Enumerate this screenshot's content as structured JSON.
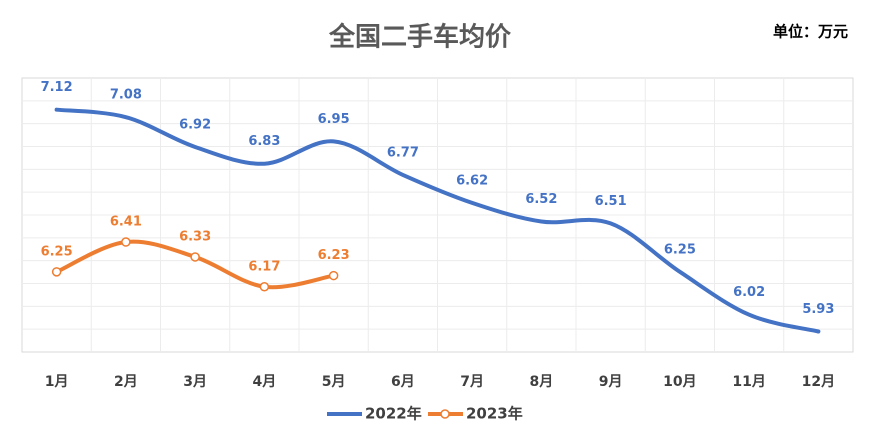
{
  "chart_data": {
    "type": "line",
    "title": "全国二手车均价",
    "subtitle": "单位：万元",
    "categories": [
      "1月",
      "2月",
      "3月",
      "4月",
      "5月",
      "6月",
      "7月",
      "8月",
      "9月",
      "10月",
      "11月",
      "12月"
    ],
    "series": [
      {
        "name": "2022年",
        "color": "#4472c4",
        "values": [
          7.12,
          7.08,
          6.92,
          6.83,
          6.95,
          6.77,
          6.62,
          6.52,
          6.51,
          6.25,
          6.02,
          5.93
        ]
      },
      {
        "name": "2023年",
        "color": "#ed7d31",
        "values": [
          6.25,
          6.41,
          6.33,
          6.17,
          6.23,
          null,
          null,
          null,
          null,
          null,
          null,
          null
        ]
      }
    ],
    "ylim": [
      5.82,
      7.29
    ],
    "smooth": true
  }
}
